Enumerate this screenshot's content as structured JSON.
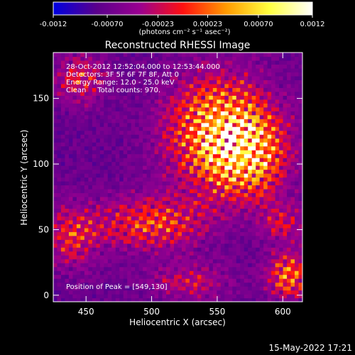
{
  "chart_data": {
    "type": "heatmap",
    "title": "Reconstructed RHESSI Image",
    "xlabel": "Heliocentric X (arcsec)",
    "ylabel": "Heliocentric Y (arcsec)",
    "x_ticks": [
      450,
      500,
      550,
      600
    ],
    "y_ticks": [
      0,
      50,
      100,
      150
    ],
    "xlim": [
      425,
      615
    ],
    "ylim": [
      -5,
      185
    ],
    "colorbar": {
      "ticks": [
        "-0.0012",
        "-0.00070",
        "-0.00023",
        "0.00023",
        "0.00070",
        "0.0012"
      ],
      "range": [
        -0.0012,
        0.0012
      ],
      "unit_label": "(photons cm⁻² s⁻¹ asec⁻²)",
      "colors": [
        "#0000e0",
        "#5a008c",
        "#9a0090",
        "#ff1010",
        "#ff9a00",
        "#ffff40",
        "#ffffff"
      ]
    },
    "annotations": [
      "28-Oct-2012 12:52:04.000 to 12:53:44.000",
      "Detectors: 3F 5F 6F 7F 8F, Att 0",
      "Energy Range: 12.0 - 25.0 keV",
      "Clean     Total counts: 970."
    ],
    "peak_label": "Position of Peak = [549,130]",
    "peak": [
      549,
      130
    ],
    "sources": [
      {
        "x": 552,
        "y": 125,
        "sx": 28,
        "sy": 30,
        "amp": 1.0
      },
      {
        "x": 575,
        "y": 105,
        "sx": 20,
        "sy": 22,
        "amp": 0.65
      },
      {
        "x": 500,
        "y": 55,
        "sx": 30,
        "sy": 15,
        "amp": 0.6
      },
      {
        "x": 440,
        "y": 45,
        "sx": 14,
        "sy": 18,
        "amp": 0.5
      },
      {
        "x": 445,
        "y": 165,
        "sx": 14,
        "sy": 14,
        "amp": 0.5
      },
      {
        "x": 605,
        "y": 15,
        "sx": 12,
        "sy": 12,
        "amp": 0.75
      },
      {
        "x": 600,
        "y": 55,
        "sx": 12,
        "sy": 12,
        "amp": 0.4
      },
      {
        "x": 530,
        "y": 10,
        "sx": 22,
        "sy": 10,
        "amp": 0.4
      }
    ]
  },
  "footer_timestamp": "15-May-2022 17:21"
}
